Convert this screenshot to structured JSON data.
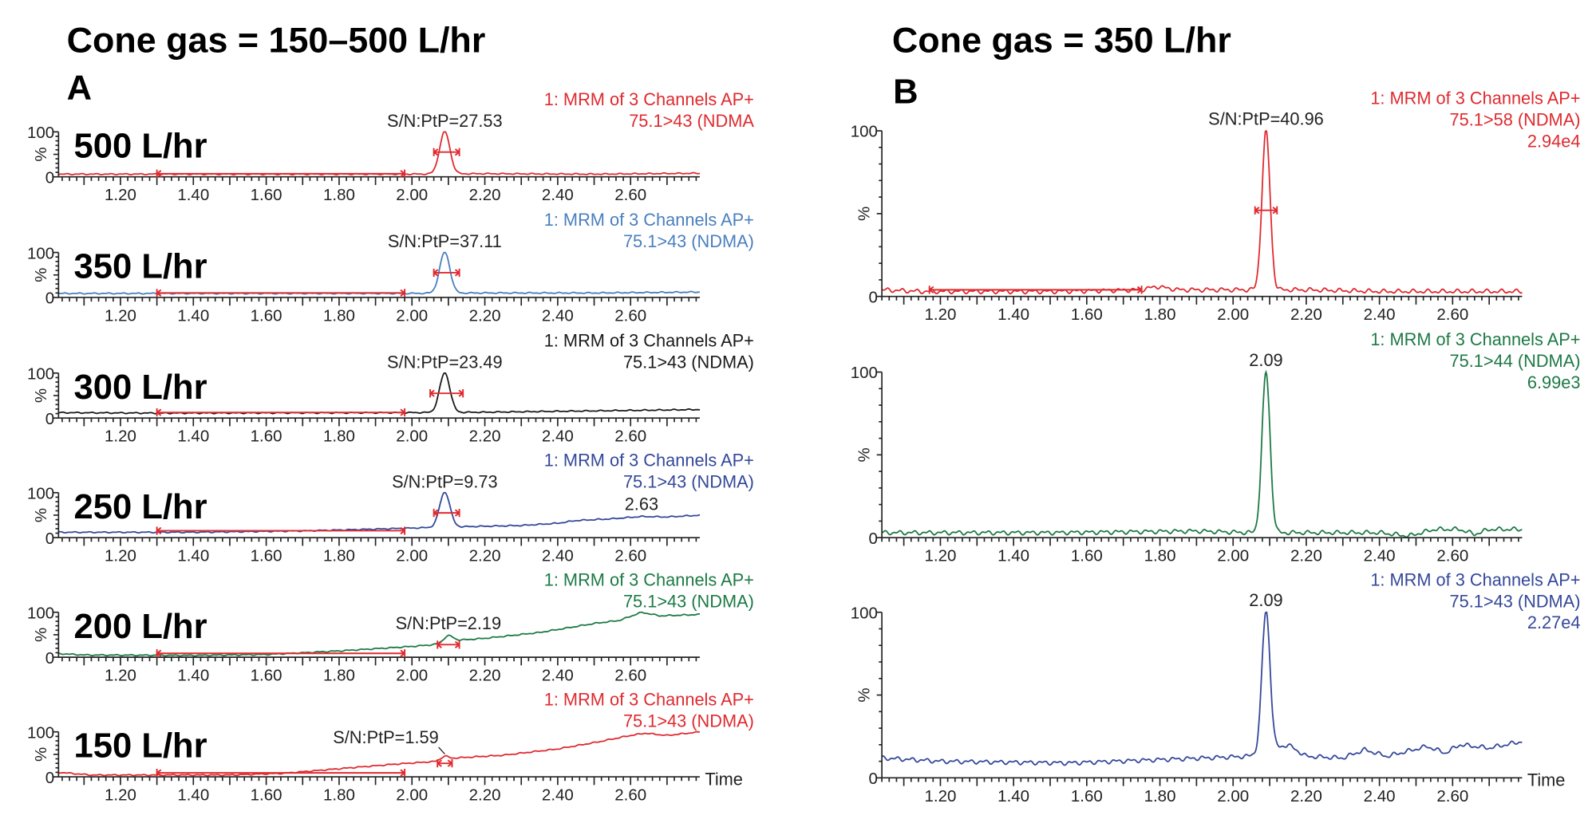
{
  "titles": {
    "left": "Cone gas = 150–500 L/hr",
    "left_letter": "A",
    "right": "Cone gas = 350 L/hr",
    "right_letter": "B"
  },
  "colors": {
    "red": "#df2a2f",
    "light_blue": "#4a7fbf",
    "black": "#1a1a1a",
    "dark_blue": "#34489a",
    "green": "#1d7a45",
    "axis": "#222222"
  },
  "chart_data": [
    {
      "type": "line",
      "panel": "A",
      "label": "500 L/hr",
      "color": "red",
      "header": [
        "1: MRM of 3 Channels AP+",
        "75.1>43 (NDMA"
      ],
      "annotation": "S/N:PtP=27.53",
      "xlim": [
        1.03,
        2.79
      ],
      "ylim": [
        0,
        100
      ],
      "y_ticks": [
        "100",
        "0"
      ],
      "ylabel": "%",
      "x_ticks": [
        "1.20",
        "1.40",
        "1.60",
        "1.80",
        "2.00",
        "2.20",
        "2.40",
        "2.60"
      ],
      "baseline": [
        [
          1.03,
          6
        ],
        [
          1.3,
          6
        ],
        [
          1.6,
          6
        ],
        [
          1.98,
          6
        ],
        [
          2.2,
          7
        ],
        [
          2.5,
          6
        ],
        [
          2.79,
          8
        ]
      ],
      "peak": {
        "rt": 2.09,
        "height": 94,
        "sigma": 0.014
      },
      "noise_range": [
        1.3,
        1.98
      ],
      "width_bar": [
        2.06,
        2.13,
        55
      ]
    },
    {
      "type": "line",
      "panel": "A",
      "label": "350 L/hr",
      "color": "light_blue",
      "header": [
        "1: MRM of 3 Channels AP+",
        "75.1>43 (NDMA)"
      ],
      "annotation": "S/N:PtP=37.11",
      "xlim": [
        1.03,
        2.79
      ],
      "ylim": [
        0,
        100
      ],
      "y_ticks": [
        "100",
        "0"
      ],
      "ylabel": "%",
      "x_ticks": [
        "1.20",
        "1.40",
        "1.60",
        "1.80",
        "2.00",
        "2.20",
        "2.40",
        "2.60"
      ],
      "baseline": [
        [
          1.03,
          9
        ],
        [
          1.3,
          9
        ],
        [
          1.98,
          9
        ],
        [
          2.2,
          10
        ],
        [
          2.5,
          10
        ],
        [
          2.79,
          12
        ]
      ],
      "peak": {
        "rt": 2.09,
        "height": 91,
        "sigma": 0.014
      },
      "noise_range": [
        1.3,
        1.98
      ],
      "width_bar": [
        2.06,
        2.13,
        55
      ]
    },
    {
      "type": "line",
      "panel": "A",
      "label": "300 L/hr",
      "color": "black",
      "header": [
        "1: MRM of 3 Channels AP+",
        "75.1>43 (NDMA)"
      ],
      "annotation": "S/N:PtP=23.49",
      "xlim": [
        1.03,
        2.79
      ],
      "ylim": [
        0,
        100
      ],
      "y_ticks": [
        "100",
        "0"
      ],
      "ylabel": "%",
      "x_ticks": [
        "1.20",
        "1.40",
        "1.60",
        "1.80",
        "2.00",
        "2.20",
        "2.40",
        "2.60"
      ],
      "baseline": [
        [
          1.03,
          12
        ],
        [
          1.3,
          11
        ],
        [
          1.98,
          12
        ],
        [
          2.2,
          13
        ],
        [
          2.4,
          15
        ],
        [
          2.6,
          17
        ],
        [
          2.79,
          19
        ]
      ],
      "peak": {
        "rt": 2.09,
        "height": 88,
        "sigma": 0.014
      },
      "noise_range": [
        1.3,
        1.98
      ],
      "width_bar": [
        2.05,
        2.14,
        55
      ]
    },
    {
      "type": "line",
      "panel": "A",
      "label": "250 L/hr",
      "color": "dark_blue",
      "header": [
        "1: MRM of 3 Channels AP+",
        "75.1>43 (NDMA)"
      ],
      "annotation": "S/N:PtP=9.73",
      "extra_label": {
        "text": "2.63",
        "x": 2.63,
        "y": 52
      },
      "xlim": [
        1.03,
        2.79
      ],
      "ylim": [
        0,
        100
      ],
      "y_ticks": [
        "100",
        "0"
      ],
      "ylabel": "%",
      "x_ticks": [
        "1.20",
        "1.40",
        "1.60",
        "1.80",
        "2.00",
        "2.20",
        "2.40",
        "2.60"
      ],
      "baseline": [
        [
          1.03,
          12
        ],
        [
          1.4,
          12
        ],
        [
          1.7,
          15
        ],
        [
          1.9,
          19
        ],
        [
          2.03,
          22
        ],
        [
          2.12,
          24
        ],
        [
          2.3,
          27
        ],
        [
          2.4,
          32
        ],
        [
          2.45,
          38
        ],
        [
          2.55,
          42
        ],
        [
          2.63,
          47
        ],
        [
          2.7,
          46
        ],
        [
          2.79,
          50
        ]
      ],
      "peak": {
        "rt": 2.09,
        "height": 78,
        "sigma": 0.014
      },
      "noise_range": [
        1.3,
        1.98
      ],
      "width_bar": [
        2.06,
        2.13,
        55
      ]
    },
    {
      "type": "line",
      "panel": "A",
      "label": "200 L/hr",
      "color": "green",
      "header": [
        "1: MRM of 3 Channels AP+",
        "75.1>43 (NDMA)"
      ],
      "annotation": "S/N:PtP=2.19",
      "xlim": [
        1.03,
        2.79
      ],
      "ylim": [
        0,
        100
      ],
      "y_ticks": [
        "100",
        "0"
      ],
      "ylabel": "%",
      "x_ticks": [
        "1.20",
        "1.40",
        "1.60",
        "1.80",
        "2.00",
        "2.20",
        "2.40",
        "2.60"
      ],
      "baseline": [
        [
          1.03,
          8
        ],
        [
          1.1,
          5
        ],
        [
          1.4,
          4
        ],
        [
          1.6,
          6
        ],
        [
          1.8,
          14
        ],
        [
          2.0,
          24
        ],
        [
          2.06,
          28
        ],
        [
          2.13,
          38
        ],
        [
          2.2,
          42
        ],
        [
          2.35,
          55
        ],
        [
          2.5,
          75
        ],
        [
          2.57,
          82
        ],
        [
          2.63,
          100
        ],
        [
          2.68,
          92
        ],
        [
          2.79,
          95
        ]
      ],
      "peak": {
        "rt": 2.1,
        "height": 14,
        "sigma": 0.013
      },
      "noise_range": [
        1.3,
        1.98
      ],
      "width_bar": [
        2.07,
        2.13,
        28
      ]
    },
    {
      "type": "line",
      "panel": "A",
      "label": "150 L/hr",
      "color": "red",
      "header": [
        "1: MRM of 3 Channels AP+",
        "75.1>43 (NDMA)"
      ],
      "annotation": "S/N:PtP=1.59",
      "xlim": [
        1.03,
        2.79
      ],
      "ylim": [
        0,
        100
      ],
      "y_ticks": [
        "100",
        "0"
      ],
      "ylabel": "%",
      "x_ticks": [
        "1.20",
        "1.40",
        "1.60",
        "1.80",
        "2.00",
        "2.20",
        "2.40",
        "2.60"
      ],
      "baseline": [
        [
          1.03,
          10
        ],
        [
          1.12,
          4
        ],
        [
          1.5,
          4
        ],
        [
          1.65,
          8
        ],
        [
          1.8,
          18
        ],
        [
          1.95,
          28
        ],
        [
          2.06,
          34
        ],
        [
          2.12,
          42
        ],
        [
          2.25,
          48
        ],
        [
          2.4,
          62
        ],
        [
          2.5,
          76
        ],
        [
          2.6,
          92
        ],
        [
          2.64,
          97
        ],
        [
          2.7,
          92
        ],
        [
          2.79,
          100
        ]
      ],
      "peak": {
        "rt": 2.09,
        "height": 8,
        "sigma": 0.01
      },
      "noise_range": [
        1.3,
        1.98
      ],
      "width_bar": [
        2.07,
        2.11,
        30
      ],
      "time_label": "Time"
    },
    {
      "type": "line",
      "panel": "B",
      "color": "red",
      "header": [
        "1: MRM of 3 Channels AP+",
        "75.1>58 (NDMA)",
        "2.94e4"
      ],
      "annotation": "S/N:PtP=40.96",
      "xlim": [
        1.04,
        2.79
      ],
      "ylim": [
        0,
        100
      ],
      "y_ticks": [
        "100",
        "0"
      ],
      "ylabel": "%",
      "x_ticks": [
        "1.20",
        "1.40",
        "1.60",
        "1.80",
        "2.00",
        "2.20",
        "2.40",
        "2.60"
      ],
      "baseline": [
        [
          1.04,
          4
        ],
        [
          1.15,
          3
        ],
        [
          1.5,
          3
        ],
        [
          1.75,
          4
        ],
        [
          1.79,
          6
        ],
        [
          1.85,
          4
        ],
        [
          2.0,
          4
        ],
        [
          2.2,
          4
        ],
        [
          2.4,
          3
        ],
        [
          2.6,
          3
        ],
        [
          2.79,
          3
        ]
      ],
      "peak": {
        "rt": 2.09,
        "height": 96,
        "sigma": 0.011
      },
      "noise_range": [
        1.17,
        1.75
      ],
      "width_bar": [
        2.06,
        2.12,
        52
      ]
    },
    {
      "type": "line",
      "panel": "B",
      "color": "green",
      "header": [
        "1: MRM of 3 Channels AP+",
        "75.1>44 (NDMA)",
        "6.99e3"
      ],
      "annotation": "2.09",
      "xlim": [
        1.04,
        2.79
      ],
      "ylim": [
        0,
        100
      ],
      "y_ticks": [
        "100",
        "0"
      ],
      "ylabel": "%",
      "x_ticks": [
        "1.20",
        "1.40",
        "1.60",
        "1.80",
        "2.00",
        "2.20",
        "2.40",
        "2.60"
      ],
      "baseline": [
        [
          1.04,
          3
        ],
        [
          1.5,
          3
        ],
        [
          1.9,
          4
        ],
        [
          2.05,
          3
        ],
        [
          2.2,
          3
        ],
        [
          2.4,
          3
        ],
        [
          2.48,
          1
        ],
        [
          2.55,
          5
        ],
        [
          2.62,
          5
        ],
        [
          2.66,
          2
        ],
        [
          2.7,
          5
        ],
        [
          2.79,
          5
        ]
      ],
      "peak": {
        "rt": 2.09,
        "height": 97,
        "sigma": 0.011
      }
    },
    {
      "type": "line",
      "panel": "B",
      "color": "dark_blue",
      "header": [
        "1: MRM of 3 Channels AP+",
        "75.1>43 (NDMA)",
        "2.27e4"
      ],
      "annotation": "2.09",
      "time_label": "Time",
      "xlim": [
        1.04,
        2.79
      ],
      "ylim": [
        0,
        100
      ],
      "y_ticks": [
        "100",
        "0"
      ],
      "ylabel": "%",
      "x_ticks": [
        "1.20",
        "1.40",
        "1.60",
        "1.80",
        "2.00",
        "2.20",
        "2.40",
        "2.60"
      ],
      "baseline": [
        [
          1.04,
          12
        ],
        [
          1.2,
          10
        ],
        [
          1.55,
          9
        ],
        [
          1.8,
          11
        ],
        [
          2.04,
          13
        ],
        [
          2.15,
          20
        ],
        [
          2.2,
          13
        ],
        [
          2.3,
          12
        ],
        [
          2.36,
          17
        ],
        [
          2.42,
          13
        ],
        [
          2.53,
          19
        ],
        [
          2.58,
          15
        ],
        [
          2.62,
          20
        ],
        [
          2.7,
          18
        ],
        [
          2.79,
          22
        ]
      ],
      "peak": {
        "rt": 2.09,
        "height": 85,
        "sigma": 0.011
      }
    }
  ]
}
